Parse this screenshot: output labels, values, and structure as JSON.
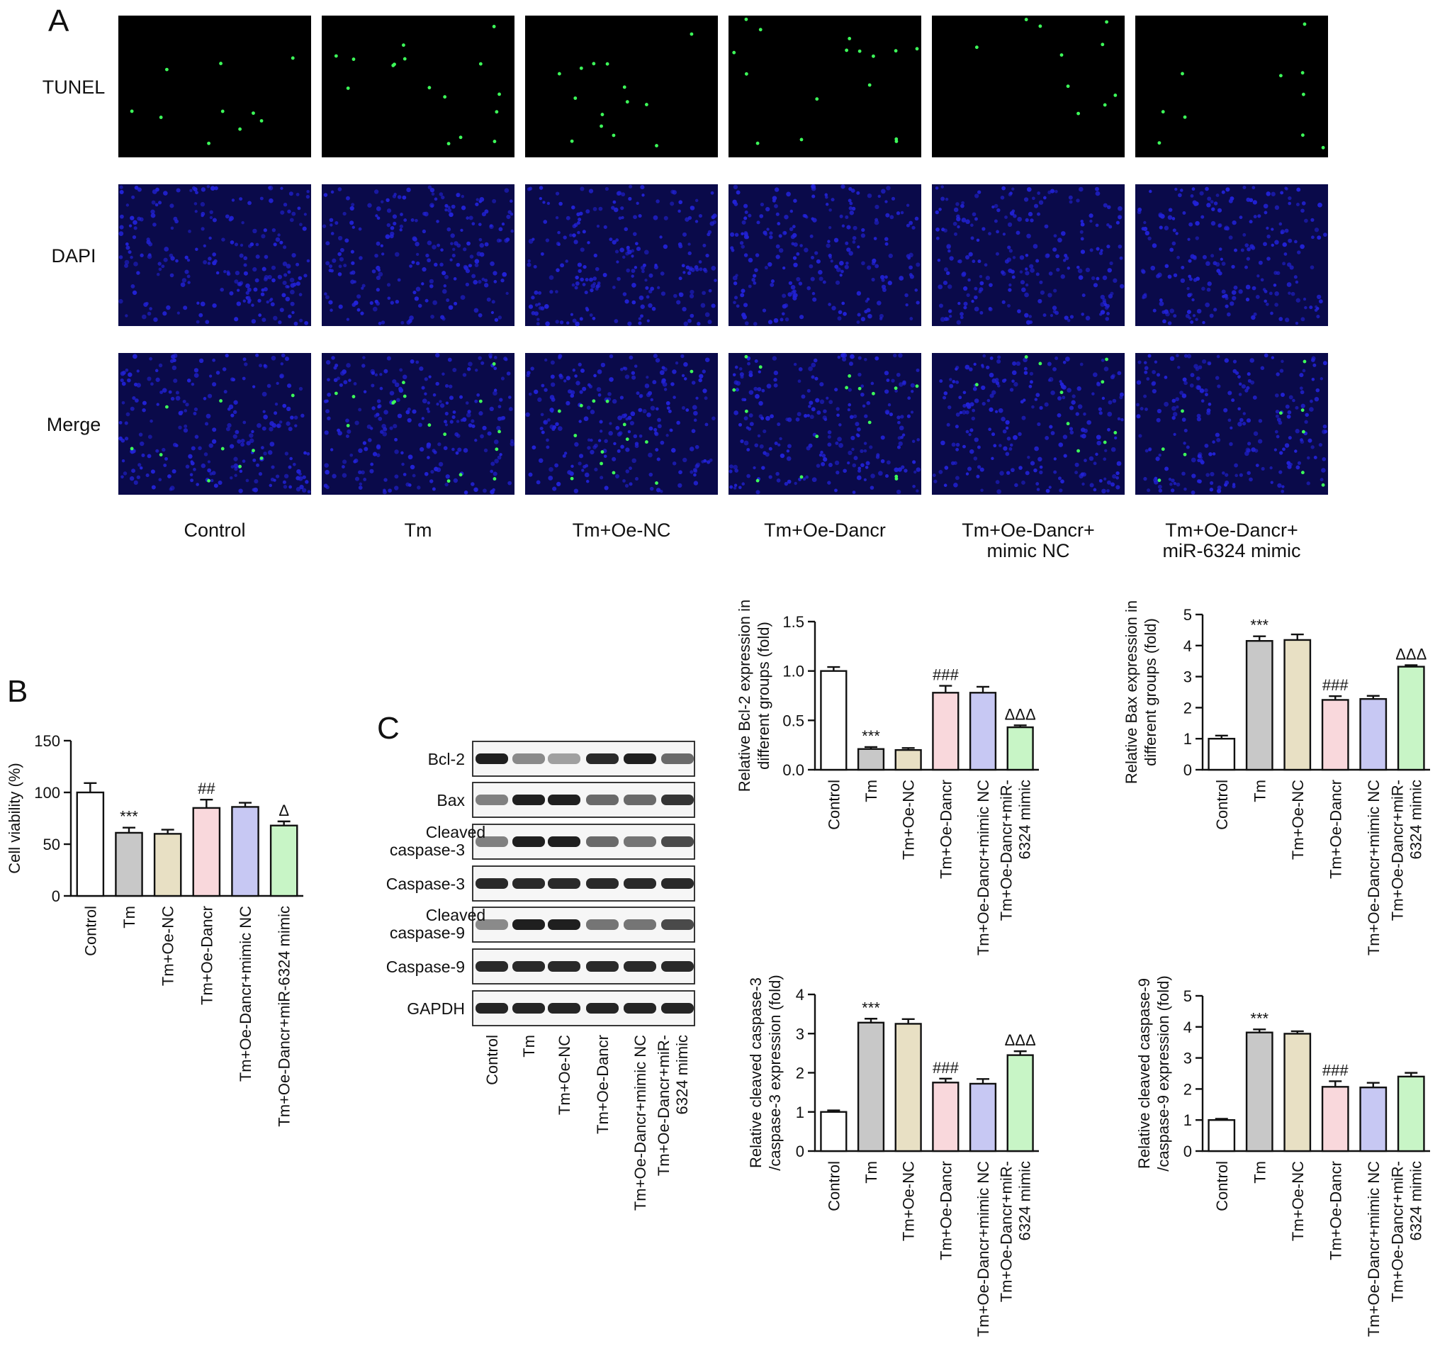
{
  "panels": {
    "a": "A",
    "b": "B",
    "c": "C"
  },
  "micro": {
    "rows": [
      "TUNEL",
      "DAPI",
      "Merge"
    ],
    "groups": [
      [
        "Control"
      ],
      [
        "Tm"
      ],
      [
        "Tm+Oe-NC"
      ],
      [
        "Tm+Oe-Dancr"
      ],
      [
        "Tm+Oe-Dancr+",
        "mimic NC"
      ],
      [
        "Tm+Oe-Dancr+",
        "miR-6324 mimic"
      ]
    ]
  },
  "colors": {
    "background": "#000000",
    "tunel_dot": "#3dff5a",
    "dapi_nuclei": "#2222d8",
    "dapi_bg": "#0a0a4a"
  },
  "blot": {
    "rows": [
      {
        "label": [
          "Bcl-2"
        ],
        "intensity": [
          0.95,
          0.45,
          0.35,
          0.9,
          0.95,
          0.6
        ]
      },
      {
        "label": [
          "Bax"
        ],
        "intensity": [
          0.5,
          0.95,
          0.95,
          0.6,
          0.6,
          0.85
        ]
      },
      {
        "label": [
          "Cleaved",
          "caspase-3"
        ],
        "intensity": [
          0.5,
          0.95,
          0.95,
          0.6,
          0.55,
          0.75
        ]
      },
      {
        "label": [
          "Caspase-3"
        ],
        "intensity": [
          0.9,
          0.9,
          0.9,
          0.9,
          0.9,
          0.9
        ]
      },
      {
        "label": [
          "Cleaved",
          "caspase-9"
        ],
        "intensity": [
          0.45,
          0.95,
          0.95,
          0.55,
          0.55,
          0.75
        ]
      },
      {
        "label": [
          "Caspase-9"
        ],
        "intensity": [
          0.9,
          0.9,
          0.9,
          0.9,
          0.9,
          0.9
        ]
      },
      {
        "label": [
          "GAPDH"
        ],
        "intensity": [
          0.92,
          0.92,
          0.92,
          0.92,
          0.92,
          0.92
        ]
      }
    ],
    "lanes": [
      [
        "Control"
      ],
      [
        "Tm"
      ],
      [
        "Tm+Oe-NC"
      ],
      [
        "Tm+Oe-Dancr"
      ],
      [
        "Tm+Oe-Dancr+mimic NC"
      ],
      [
        "Tm+Oe-Dancr+miR-",
        "6324 mimic"
      ]
    ]
  },
  "chart_data": [
    {
      "id": "viability",
      "type": "bar",
      "categories": [
        [
          "Control"
        ],
        [
          "Tm"
        ],
        [
          "Tm+Oe-NC"
        ],
        [
          "Tm+Oe-Dancr"
        ],
        [
          "Tm+Oe-Dancr+mimic NC"
        ],
        [
          "Tm+Oe-Dancr+miR-6324 mimic"
        ]
      ],
      "values": [
        100,
        61,
        60,
        85,
        86,
        68
      ],
      "errors": [
        9,
        5,
        4,
        8,
        4,
        4
      ],
      "sig": [
        "",
        "***",
        "",
        "##",
        "",
        "Δ"
      ],
      "ylabel": [
        "Cell viability (%)"
      ],
      "ylim": [
        0,
        150
      ],
      "yticks": [
        0,
        50,
        100,
        150
      ],
      "colors": [
        "#ffffff",
        "#c8c8c8",
        "#e8e0c4",
        "#f9d8dc",
        "#c7c8f3",
        "#c8f5c6"
      ]
    },
    {
      "id": "bcl2",
      "type": "bar",
      "categories": [
        [
          "Control"
        ],
        [
          "Tm"
        ],
        [
          "Tm+Oe-NC"
        ],
        [
          "Tm+Oe-Dancr"
        ],
        [
          "Tm+Oe-Dancr+mimic NC"
        ],
        [
          "Tm+Oe-Dancr+miR-",
          "6324 mimic"
        ]
      ],
      "values": [
        1.0,
        0.21,
        0.2,
        0.78,
        0.78,
        0.43
      ],
      "errors": [
        0.04,
        0.02,
        0.02,
        0.07,
        0.06,
        0.02
      ],
      "sig": [
        "",
        "***",
        "",
        "###",
        "",
        "ΔΔΔ"
      ],
      "ylabel": [
        "Relative Bcl-2 expression in",
        "different groups (fold)"
      ],
      "ylim": [
        0,
        1.5
      ],
      "yticks": [
        0.0,
        0.5,
        1.0,
        1.5
      ],
      "colors": [
        "#ffffff",
        "#c8c8c8",
        "#e8e0c4",
        "#f9d8dc",
        "#c7c8f3",
        "#c8f5c6"
      ]
    },
    {
      "id": "bax",
      "type": "bar",
      "categories": [
        [
          "Control"
        ],
        [
          "Tm"
        ],
        [
          "Tm+Oe-NC"
        ],
        [
          "Tm+Oe-Dancr"
        ],
        [
          "Tm+Oe-Dancr+mimic NC"
        ],
        [
          "Tm+Oe-Dancr+miR-",
          "6324 mimic"
        ]
      ],
      "values": [
        1.0,
        4.15,
        4.18,
        2.25,
        2.28,
        3.32
      ],
      "errors": [
        0.1,
        0.15,
        0.18,
        0.12,
        0.1,
        0.05
      ],
      "sig": [
        "",
        "***",
        "",
        "###",
        "",
        "ΔΔΔ"
      ],
      "ylabel": [
        "Relative Bax expression in",
        "different groups (fold)"
      ],
      "ylim": [
        0,
        5
      ],
      "yticks": [
        0,
        1,
        2,
        3,
        4,
        5
      ],
      "colors": [
        "#ffffff",
        "#c8c8c8",
        "#e8e0c4",
        "#f9d8dc",
        "#c7c8f3",
        "#c8f5c6"
      ]
    },
    {
      "id": "cc3",
      "type": "bar",
      "categories": [
        [
          "Control"
        ],
        [
          "Tm"
        ],
        [
          "Tm+Oe-NC"
        ],
        [
          "Tm+Oe-Dancr"
        ],
        [
          "Tm+Oe-Dancr+mimic NC"
        ],
        [
          "Tm+Oe-Dancr+miR-",
          "6324 mimic"
        ]
      ],
      "values": [
        1.0,
        3.28,
        3.25,
        1.75,
        1.72,
        2.45
      ],
      "errors": [
        0.04,
        0.1,
        0.12,
        0.1,
        0.12,
        0.1
      ],
      "sig": [
        "",
        "***",
        "",
        "###",
        "",
        "ΔΔΔ"
      ],
      "ylabel": [
        "Relative cleaved caspase-3",
        "/caspase-3 expression (fold)"
      ],
      "ylim": [
        0,
        4
      ],
      "yticks": [
        0,
        1,
        2,
        3,
        4
      ],
      "colors": [
        "#ffffff",
        "#c8c8c8",
        "#e8e0c4",
        "#f9d8dc",
        "#c7c8f3",
        "#c8f5c6"
      ]
    },
    {
      "id": "cc9",
      "type": "bar",
      "categories": [
        [
          "Control"
        ],
        [
          "Tm"
        ],
        [
          "Tm+Oe-NC"
        ],
        [
          "Tm+Oe-Dancr"
        ],
        [
          "Tm+Oe-Dancr+mimic NC"
        ],
        [
          "Tm+Oe-Dancr+miR-",
          "6324 mimic"
        ]
      ],
      "values": [
        1.0,
        3.82,
        3.78,
        2.07,
        2.05,
        2.4
      ],
      "errors": [
        0.04,
        0.1,
        0.08,
        0.18,
        0.15,
        0.12
      ],
      "sig": [
        "",
        "***",
        "",
        "###",
        "",
        ""
      ],
      "ylabel": [
        "Relative cleaved caspase-9",
        "/caspase-9 expression (fold)"
      ],
      "ylim": [
        0,
        5
      ],
      "yticks": [
        0,
        1,
        2,
        3,
        4,
        5
      ],
      "colors": [
        "#ffffff",
        "#c8c8c8",
        "#e8e0c4",
        "#f9d8dc",
        "#c7c8f3",
        "#c8f5c6"
      ]
    }
  ]
}
